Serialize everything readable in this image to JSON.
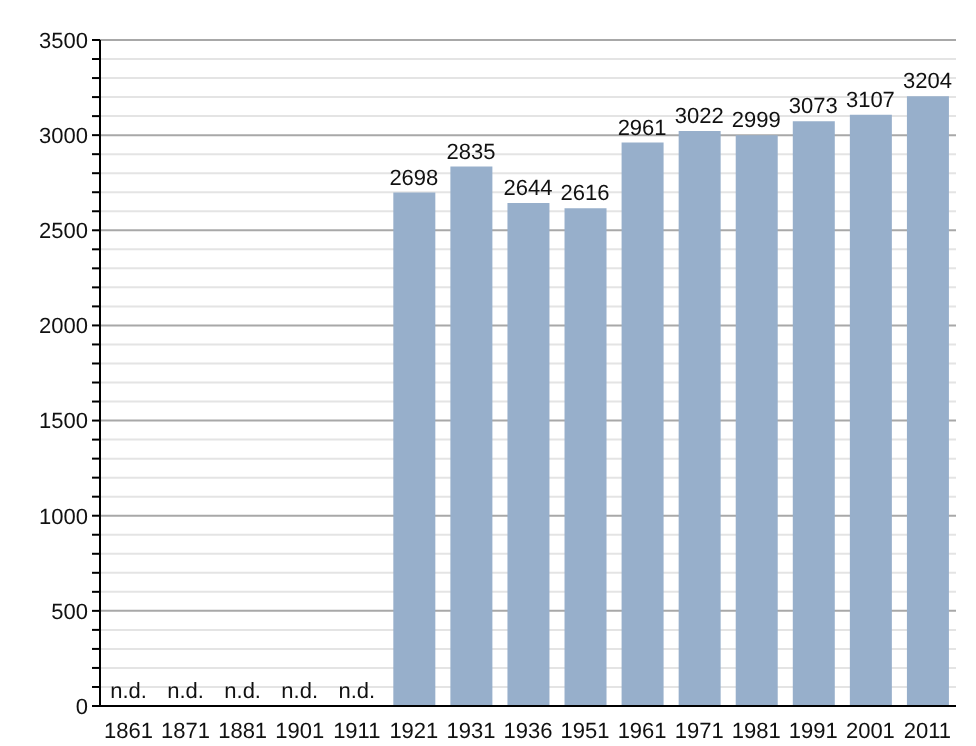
{
  "chart_data": {
    "type": "bar",
    "categories": [
      "1861",
      "1871",
      "1881",
      "1901",
      "1911",
      "1921",
      "1931",
      "1936",
      "1951",
      "1961",
      "1971",
      "1981",
      "1991",
      "2001",
      "2011"
    ],
    "values": [
      null,
      null,
      null,
      null,
      null,
      2698,
      2835,
      2644,
      2616,
      2961,
      3022,
      2999,
      3073,
      3107,
      3204
    ],
    "value_labels": [
      "n.d.",
      "n.d.",
      "n.d.",
      "n.d.",
      "n.d.",
      "2698",
      "2835",
      "2644",
      "2616",
      "2961",
      "3022",
      "2999",
      "3073",
      "3107",
      "3204"
    ],
    "color": "#97afcb",
    "ylim": [
      0,
      3500
    ],
    "yticks": [
      0,
      {
        "value": 100,
        "label": null
      },
      {
        "value": 200,
        "label": null
      },
      {
        "value": 300,
        "label": null
      },
      {
        "value": 400,
        "label": null
      },
      500,
      {
        "value": 600,
        "label": null
      },
      {
        "value": 700,
        "label": null
      },
      {
        "value": 800,
        "label": null
      },
      {
        "value": 900,
        "label": null
      },
      1000,
      {
        "value": 1100,
        "label": null
      },
      {
        "value": 1200,
        "label": null
      },
      {
        "value": 1300,
        "label": null
      },
      {
        "value": 1400,
        "label": null
      },
      1500,
      {
        "value": 1600,
        "label": null
      },
      {
        "value": 1700,
        "label": null
      },
      {
        "value": 1800,
        "label": null
      },
      {
        "value": 1900,
        "label": null
      },
      2000,
      {
        "value": 2100,
        "label": null
      },
      {
        "value": 2200,
        "label": null
      },
      {
        "value": 2300,
        "label": null
      },
      {
        "value": 2400,
        "label": null
      },
      2500,
      {
        "value": 2600,
        "label": null
      },
      {
        "value": 2700,
        "label": null
      },
      {
        "value": 2800,
        "label": null
      },
      {
        "value": 2900,
        "label": null
      },
      3000,
      {
        "value": 3100,
        "label": null
      },
      {
        "value": 3200,
        "label": null
      },
      {
        "value": 3300,
        "label": null
      },
      {
        "value": 3400,
        "label": null
      },
      3500
    ],
    "grid": "y"
  }
}
